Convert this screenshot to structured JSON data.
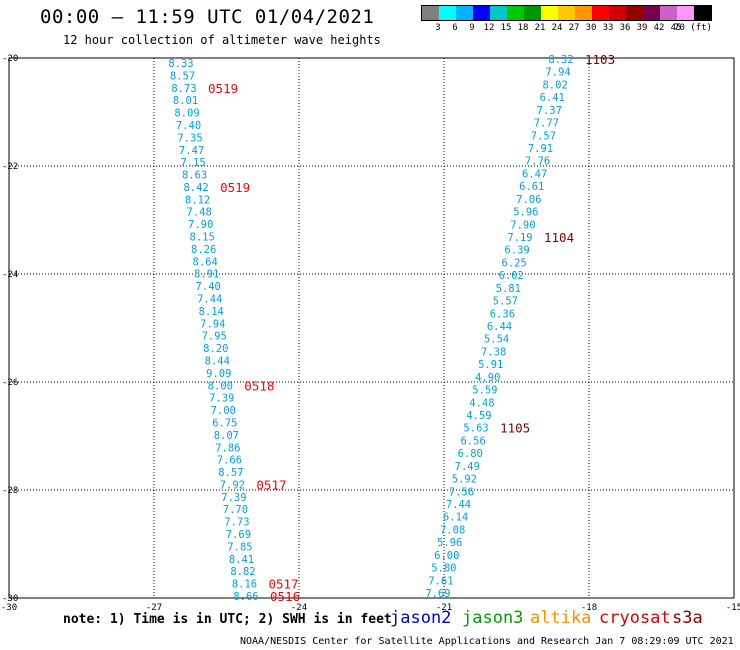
{
  "title": "00:00 – 11:59 UTC 01/04/2021",
  "subtitle": "12 hour collection of altimeter wave heights",
  "legend": {
    "colors": [
      "#808080",
      "#00ffff",
      "#00b4ff",
      "#0000ff",
      "#00c8c8",
      "#00c800",
      "#009600",
      "#ffff00",
      "#ffc800",
      "#ff9600",
      "#ff0000",
      "#d20000",
      "#960000",
      "#780050",
      "#c864c8",
      "#ff96ff",
      "#000000"
    ],
    "labels": [
      "3",
      "6",
      "9",
      "12",
      "15",
      "18",
      "21",
      "24",
      "27",
      "30",
      "33",
      "36",
      "39",
      "42",
      "45",
      "70 (ft)"
    ]
  },
  "note": "note: 1) Time is in UTC; 2) SWH is in feet",
  "satellites": [
    {
      "name": "jason2",
      "color": "#0000cc"
    },
    {
      "name": "jason3",
      "color": "#00a000"
    },
    {
      "name": "altika",
      "color": "#ff8c00"
    },
    {
      "name": "cryosat",
      "color": "#dd0000"
    },
    {
      "name": "s3a",
      "color": "#8b0000"
    }
  ],
  "credit": "NOAA/NESDIS Center for Satellite Applications and Research    Jan  7 08:29:09 UTC 2021",
  "map": {
    "lon_range": [
      -30,
      -15
    ],
    "lat_range": [
      -30,
      -20
    ],
    "x_ticks": [
      "-30",
      "-27",
      "-24",
      "-21",
      "-18",
      "-15"
    ],
    "y_ticks": [
      "-20",
      "-22",
      "-24",
      "-26",
      "-28",
      "-30"
    ],
    "track_left": {
      "color": "#00a0e0",
      "values": [
        "8.33",
        "8.57",
        "8.73",
        "8.01",
        "8.09",
        "7.40",
        "7.35",
        "7.47",
        "7.15",
        "8.63",
        "8.42",
        "8.12",
        "7.48",
        "7.90",
        "8.15",
        "8.26",
        "8.64",
        "8.91",
        "7.40",
        "7.44",
        "8.14",
        "7.94",
        "7.95",
        "8.20",
        "8.44",
        "9.09",
        "8.00",
        "7.39",
        "7.00",
        "6.75",
        "8.07",
        "7.86",
        "7.66",
        "8.57",
        "7.92",
        "7.39",
        "7.70",
        "7.73",
        "7.69",
        "7.85",
        "8.41",
        "8.82",
        "8.16",
        "8.66"
      ],
      "time_labels": [
        {
          "text": "0519",
          "after": 2,
          "color": "#ff0000"
        },
        {
          "text": "0519",
          "after": 10,
          "color": "#ff0000"
        },
        {
          "text": "0518",
          "after": 26,
          "color": "#ff0000"
        },
        {
          "text": "0517",
          "after": 34,
          "color": "#ff0000"
        },
        {
          "text": "0517",
          "after": 42,
          "color": "#ff0000"
        },
        {
          "text": "0516",
          "after": 43,
          "color": "#ff0000"
        }
      ]
    },
    "track_right": {
      "color": "#00a0e0",
      "values": [
        "8.32",
        "7.94",
        "8.02",
        "6.41",
        "7.37",
        "7.77",
        "7.57",
        "7.91",
        "7.76",
        "6.47",
        "6.61",
        "7.06",
        "5.96",
        "7.90",
        "7.19",
        "6.39",
        "6.25",
        "6.02",
        "5.81",
        "5.57",
        "6.36",
        "6.44",
        "5.54",
        "7.38",
        "5.91",
        "4.90",
        "5.59",
        "4.48",
        "4.59",
        "5.63",
        "6.56",
        "6.80",
        "7.49",
        "5.92",
        "7.56",
        "7.44",
        "6.14",
        "7.08",
        "5.96",
        "6.00",
        "5.80",
        "7.61",
        "7.69"
      ],
      "time_labels": [
        {
          "text": "1103",
          "after": 0,
          "color": "#800000"
        },
        {
          "text": "1104",
          "after": 14,
          "color": "#800000"
        },
        {
          "text": "1105",
          "after": 29,
          "color": "#800000"
        }
      ]
    }
  }
}
